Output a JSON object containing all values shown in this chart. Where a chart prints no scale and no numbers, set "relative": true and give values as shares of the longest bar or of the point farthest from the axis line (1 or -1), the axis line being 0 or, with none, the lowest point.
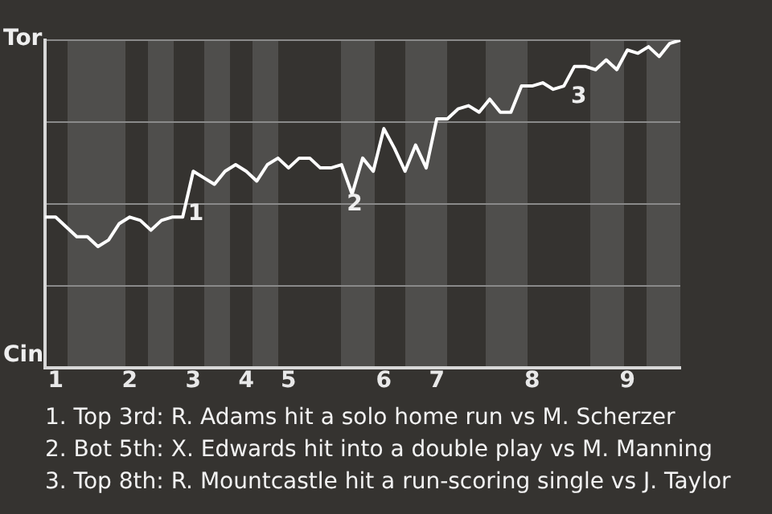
{
  "chart_data": {
    "type": "line",
    "relative": true,
    "categories": [
      null,
      "1",
      null,
      null,
      null,
      null,
      null,
      null,
      "2",
      null,
      null,
      null,
      null,
      null,
      "3",
      null,
      null,
      null,
      null,
      "4",
      null,
      null,
      null,
      "5",
      null,
      null,
      null,
      null,
      null,
      null,
      null,
      null,
      "6",
      null,
      null,
      null,
      null,
      "7",
      null,
      null,
      null,
      null,
      null,
      null,
      null,
      null,
      "8",
      null,
      null,
      null,
      null,
      null,
      null,
      null,
      null,
      "9",
      null,
      null,
      null,
      null,
      null
    ],
    "series": [
      {
        "color": "#ffffff",
        "values": [
          0.46,
          0.46,
          0.43,
          0.4,
          0.4,
          0.37,
          0.39,
          0.44,
          0.46,
          0.45,
          0.42,
          0.45,
          0.46,
          0.46,
          0.6,
          0.58,
          0.56,
          0.6,
          0.62,
          0.6,
          0.57,
          0.62,
          0.64,
          0.61,
          0.64,
          0.64,
          0.61,
          0.61,
          0.62,
          0.53,
          0.64,
          0.6,
          0.73,
          0.67,
          0.6,
          0.68,
          0.61,
          0.76,
          0.76,
          0.79,
          0.8,
          0.78,
          0.82,
          0.78,
          0.78,
          0.86,
          0.86,
          0.87,
          0.85,
          0.86,
          0.92,
          0.92,
          0.91,
          0.94,
          0.91,
          0.97,
          0.96,
          0.98,
          0.95,
          0.99,
          1
        ]
      }
    ],
    "grid": "y",
    "legend": false,
    "marker": "none",
    "line_style": "solid",
    "annotations": [
      "Tor",
      "Cin",
      "1",
      "2",
      "3",
      "1. Top 3rd: R. Adams hit a solo home run vs M. Scherzer",
      "2. Bot 5th: X. Edwards hit into a double play vs M. Manning",
      "3. Top 8th: R. Mountcastle hit a run-scoring single vs J. Taylor"
    ]
  }
}
